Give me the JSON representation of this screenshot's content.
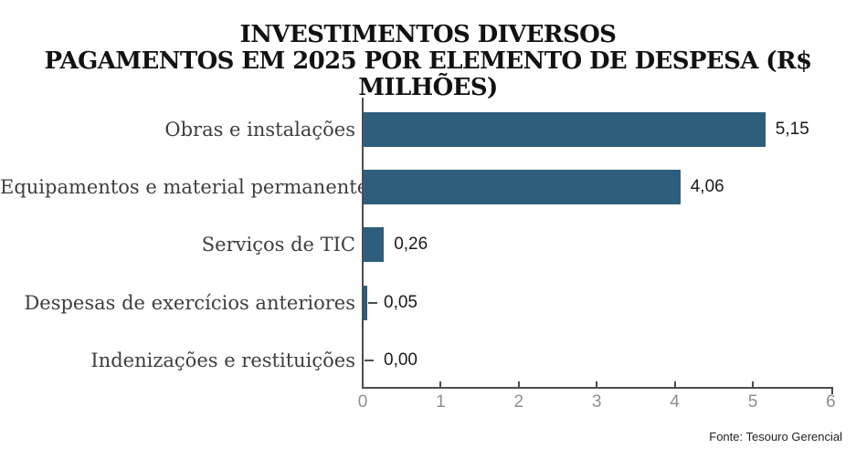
{
  "title": {
    "line1": "INVESTIMENTOS DIVERSOS",
    "line2": "PAGAMENTOS EM 2025 POR ELEMENTO DE DESPESA (R$ MILHÕES)"
  },
  "source": "Fonte: Tesouro Gerencial",
  "chart_data": {
    "type": "bar",
    "orientation": "horizontal",
    "title": "INVESTIMENTOS DIVERSOS — PAGAMENTOS EM 2025 POR ELEMENTO DE DESPESA (R$ MILHÕES)",
    "categories": [
      "Obras e instalações",
      "Equipamentos e material permanente",
      "Serviços de TIC",
      "Despesas de exercícios anteriores",
      "Indenizações e restituições"
    ],
    "values": [
      5.15,
      4.06,
      0.26,
      0.05,
      0.0
    ],
    "value_labels": [
      "5,15",
      "4,06",
      "0,26",
      "0,05",
      "0,00"
    ],
    "x_ticks": [
      "0",
      "1",
      "2",
      "3",
      "4",
      "5",
      "6"
    ],
    "xlim": [
      0,
      6
    ],
    "xlabel": "",
    "ylabel": "",
    "grid": false,
    "legend": false,
    "bar_color": "#2d5e7c",
    "axis_color": "#4d4d4d",
    "tick_label_color": "#8f8f8f",
    "category_label_color": "#3e3e3e",
    "value_label_color": "#1a1a1a"
  }
}
